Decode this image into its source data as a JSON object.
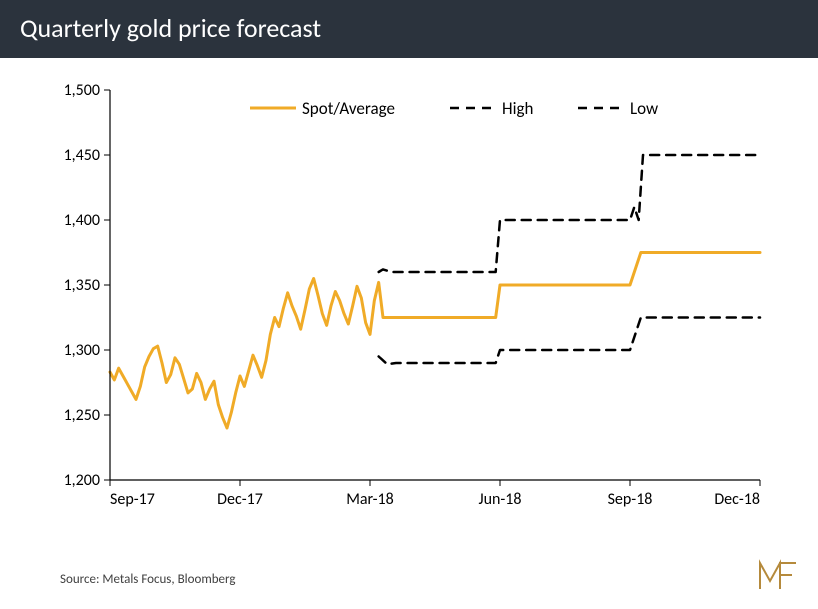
{
  "title": "Quarterly gold price forecast",
  "source": "Source: Metals Focus, Bloomberg",
  "chart": {
    "type": "line",
    "background_color": "#ffffff",
    "title_bar_bg": "#2b333d",
    "title_color": "#ffffff",
    "axis_color": "#000000",
    "axis_fontsize": 16,
    "legend_fontsize": 17,
    "x": {
      "ticks": [
        "Sep-17",
        "Dec-17",
        "Mar-18",
        "Jun-18",
        "Sep-18",
        "Dec-18"
      ],
      "tick_positions_index": [
        0,
        60,
        120,
        180,
        240,
        300
      ]
    },
    "y": {
      "min": 1200,
      "max": 1500,
      "step": 50,
      "ticks": [
        1200,
        1250,
        1300,
        1350,
        1400,
        1450,
        1500
      ]
    },
    "legend": {
      "items": [
        {
          "key": "spot",
          "label": "Spot/Average",
          "color": "#f0ab27",
          "dash": false,
          "width": 3
        },
        {
          "key": "high",
          "label": "High",
          "color": "#000000",
          "dash": true,
          "width": 2.5
        },
        {
          "key": "low",
          "label": "Low",
          "color": "#000000",
          "dash": true,
          "width": 2.5
        }
      ]
    },
    "series": {
      "spot": {
        "color": "#f0ab27",
        "width": 3,
        "dash": false,
        "points": [
          [
            0,
            1283
          ],
          [
            2,
            1277
          ],
          [
            4,
            1286
          ],
          [
            6,
            1280
          ],
          [
            8,
            1274
          ],
          [
            10,
            1268
          ],
          [
            12,
            1262
          ],
          [
            14,
            1272
          ],
          [
            16,
            1287
          ],
          [
            18,
            1295
          ],
          [
            20,
            1301
          ],
          [
            22,
            1303
          ],
          [
            24,
            1290
          ],
          [
            26,
            1275
          ],
          [
            28,
            1281
          ],
          [
            30,
            1294
          ],
          [
            32,
            1289
          ],
          [
            34,
            1278
          ],
          [
            36,
            1267
          ],
          [
            38,
            1270
          ],
          [
            40,
            1282
          ],
          [
            42,
            1275
          ],
          [
            44,
            1262
          ],
          [
            46,
            1270
          ],
          [
            48,
            1276
          ],
          [
            50,
            1258
          ],
          [
            52,
            1248
          ],
          [
            54,
            1240
          ],
          [
            56,
            1252
          ],
          [
            58,
            1267
          ],
          [
            60,
            1280
          ],
          [
            62,
            1272
          ],
          [
            64,
            1284
          ],
          [
            66,
            1296
          ],
          [
            68,
            1288
          ],
          [
            70,
            1279
          ],
          [
            72,
            1292
          ],
          [
            74,
            1312
          ],
          [
            76,
            1325
          ],
          [
            78,
            1318
          ],
          [
            80,
            1332
          ],
          [
            82,
            1344
          ],
          [
            84,
            1334
          ],
          [
            86,
            1326
          ],
          [
            88,
            1316
          ],
          [
            90,
            1331
          ],
          [
            92,
            1347
          ],
          [
            94,
            1355
          ],
          [
            96,
            1342
          ],
          [
            98,
            1328
          ],
          [
            100,
            1319
          ],
          [
            102,
            1334
          ],
          [
            104,
            1345
          ],
          [
            106,
            1338
          ],
          [
            108,
            1328
          ],
          [
            110,
            1320
          ],
          [
            112,
            1334
          ],
          [
            114,
            1349
          ],
          [
            116,
            1340
          ],
          [
            118,
            1321
          ],
          [
            120,
            1312
          ],
          [
            122,
            1338
          ],
          [
            124,
            1352
          ],
          [
            126,
            1325
          ],
          [
            128,
            1325
          ],
          [
            130,
            1325
          ],
          [
            140,
            1325
          ],
          [
            150,
            1325
          ],
          [
            160,
            1325
          ],
          [
            170,
            1325
          ],
          [
            178,
            1325
          ],
          [
            180,
            1350
          ],
          [
            190,
            1350
          ],
          [
            200,
            1350
          ],
          [
            210,
            1350
          ],
          [
            220,
            1350
          ],
          [
            230,
            1350
          ],
          [
            238,
            1350
          ],
          [
            240,
            1350
          ],
          [
            245,
            1375
          ],
          [
            250,
            1375
          ],
          [
            260,
            1375
          ],
          [
            270,
            1375
          ],
          [
            280,
            1375
          ],
          [
            290,
            1375
          ],
          [
            300,
            1375
          ]
        ]
      },
      "high": {
        "color": "#000000",
        "width": 2.5,
        "dash": true,
        "points": [
          [
            124,
            1360
          ],
          [
            126,
            1362
          ],
          [
            130,
            1360
          ],
          [
            140,
            1360
          ],
          [
            150,
            1360
          ],
          [
            160,
            1360
          ],
          [
            170,
            1360
          ],
          [
            178,
            1360
          ],
          [
            180,
            1400
          ],
          [
            190,
            1400
          ],
          [
            200,
            1400
          ],
          [
            210,
            1400
          ],
          [
            220,
            1400
          ],
          [
            230,
            1400
          ],
          [
            238,
            1400
          ],
          [
            240,
            1400
          ],
          [
            242,
            1410
          ],
          [
            244,
            1400
          ],
          [
            246,
            1450
          ],
          [
            250,
            1450
          ],
          [
            260,
            1450
          ],
          [
            270,
            1450
          ],
          [
            280,
            1450
          ],
          [
            290,
            1450
          ],
          [
            300,
            1450
          ]
        ]
      },
      "low": {
        "color": "#000000",
        "width": 2.5,
        "dash": true,
        "points": [
          [
            124,
            1295
          ],
          [
            128,
            1289
          ],
          [
            132,
            1290
          ],
          [
            140,
            1290
          ],
          [
            150,
            1290
          ],
          [
            160,
            1290
          ],
          [
            170,
            1290
          ],
          [
            178,
            1290
          ],
          [
            180,
            1300
          ],
          [
            190,
            1300
          ],
          [
            200,
            1300
          ],
          [
            210,
            1300
          ],
          [
            220,
            1300
          ],
          [
            230,
            1300
          ],
          [
            238,
            1300
          ],
          [
            240,
            1300
          ],
          [
            245,
            1325
          ],
          [
            250,
            1325
          ],
          [
            260,
            1325
          ],
          [
            270,
            1325
          ],
          [
            280,
            1325
          ],
          [
            290,
            1325
          ],
          [
            300,
            1325
          ]
        ]
      }
    }
  },
  "logo": {
    "bg": "#ffffff",
    "stroke": "#b58a3c",
    "letters": "MF"
  }
}
